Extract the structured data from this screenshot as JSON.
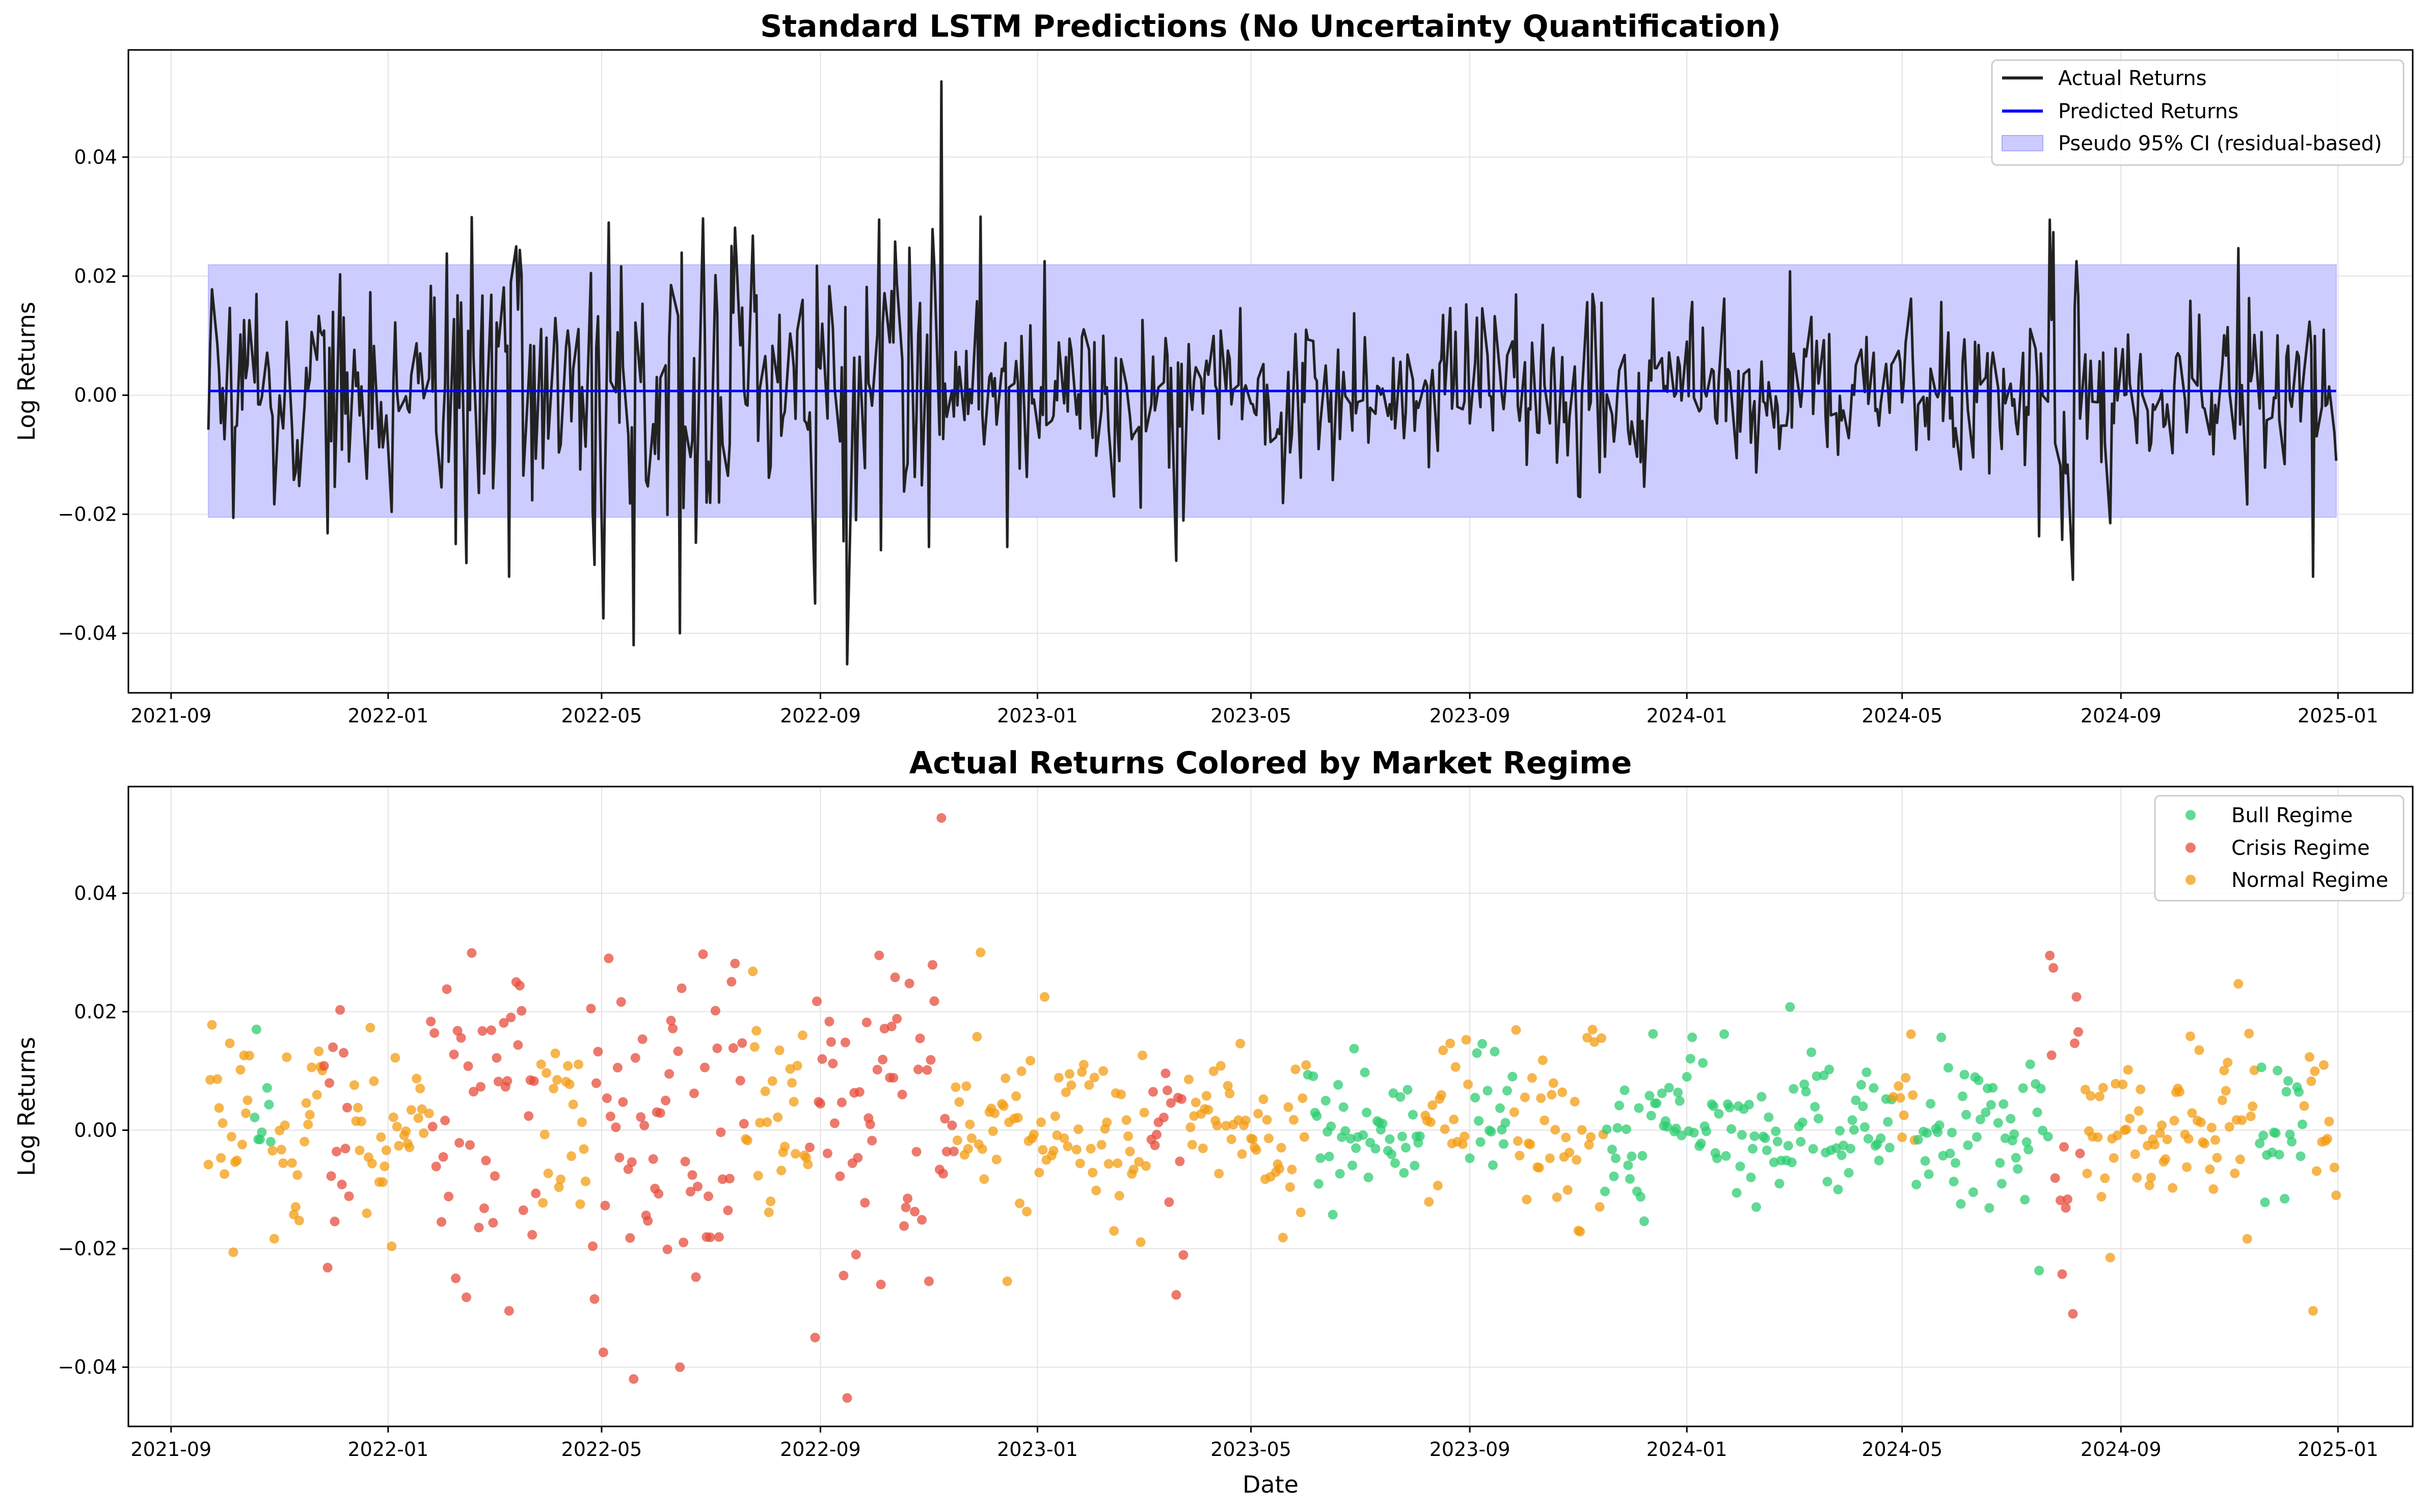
{
  "chart_data": [
    {
      "type": "line",
      "title": "Standard LSTM Predictions (No Uncertainty Quantification)",
      "xlabel": "",
      "ylabel": "Log Returns",
      "x_ticks": [
        "2021-09",
        "2022-01",
        "2022-05",
        "2022-09",
        "2023-01",
        "2023-05",
        "2023-09",
        "2024-01",
        "2024-05",
        "2024-09",
        "2025-01"
      ],
      "y_ticks": [
        "−0.04",
        "−0.02",
        "0.00",
        "0.02",
        "0.04"
      ],
      "ylim": [
        -0.05,
        0.058
      ],
      "xlim": [
        "2021-08-08",
        "2025-02-12"
      ],
      "grid": true,
      "legend_position": "top-right",
      "date_range": [
        "2021-09-22",
        "2024-12-31"
      ],
      "series": [
        {
          "name": "Actual Returns",
          "color": "#222222",
          "style": "line"
        },
        {
          "name": "Predicted Returns",
          "color": "#0000ff",
          "style": "line",
          "value": 0.0007
        },
        {
          "name": "Pseudo 95% CI (residual-based)",
          "color": "#aaaaff",
          "style": "band",
          "lower": -0.0205,
          "upper": 0.0219
        }
      ],
      "anchor_points": [
        [
          "2021-09-22",
          -0.0058
        ],
        [
          "2021-09-23",
          0.0085
        ],
        [
          "2021-09-30",
          0.0012
        ],
        [
          "2021-10-06",
          -0.0206
        ],
        [
          "2021-10-10",
          0.0102
        ],
        [
          "2021-10-19",
          0.017
        ],
        [
          "2021-11-28",
          -0.0232
        ],
        [
          "2021-12-01",
          0.014
        ],
        [
          "2021-12-05",
          0.0203
        ],
        [
          "2021-12-22",
          0.0173
        ],
        [
          "2022-01-03",
          -0.0196
        ],
        [
          "2022-02-03",
          0.0238
        ],
        [
          "2022-02-08",
          -0.025
        ],
        [
          "2022-03-10",
          -0.0305
        ],
        [
          "2022-03-14",
          0.025
        ],
        [
          "2022-04-27",
          -0.0285
        ],
        [
          "2022-05-02",
          -0.0375
        ],
        [
          "2022-05-05",
          0.029
        ],
        [
          "2022-05-19",
          -0.042
        ],
        [
          "2022-06-14",
          -0.04
        ],
        [
          "2022-06-27",
          0.0297
        ],
        [
          "2022-07-25",
          0.0268
        ],
        [
          "2022-08-29",
          -0.035
        ],
        [
          "2022-09-16",
          -0.0452
        ],
        [
          "2022-10-04",
          0.0295
        ],
        [
          "2022-10-13",
          0.0258
        ],
        [
          "2022-11-01",
          -0.0255
        ],
        [
          "2022-11-08",
          0.0527
        ],
        [
          "2022-11-30",
          0.03
        ],
        [
          "2022-12-15",
          -0.0255
        ],
        [
          "2023-01-05",
          0.0225
        ],
        [
          "2024-02-28",
          0.0208
        ],
        [
          "2024-07-17",
          -0.0237
        ],
        [
          "2024-08-05",
          -0.031
        ],
        [
          "2024-08-07",
          0.0225
        ],
        [
          "2024-08-26",
          -0.0215
        ],
        [
          "2024-11-06",
          0.0247
        ],
        [
          "2024-12-18",
          -0.0305
        ],
        [
          "2024-12-24",
          0.011
        ],
        [
          "2024-12-31",
          -0.011
        ]
      ]
    },
    {
      "type": "scatter",
      "title": "Actual Returns Colored by Market Regime",
      "xlabel": "Date",
      "ylabel": "Log Returns",
      "x_ticks": [
        "2021-09",
        "2022-01",
        "2022-05",
        "2022-09",
        "2023-01",
        "2023-05",
        "2023-09",
        "2024-01",
        "2024-05",
        "2024-09",
        "2025-01"
      ],
      "y_ticks": [
        "−0.04",
        "−0.02",
        "0.00",
        "0.02",
        "0.04"
      ],
      "ylim": [
        -0.05,
        0.058
      ],
      "xlim": [
        "2021-08-08",
        "2025-02-12"
      ],
      "grid": true,
      "legend_position": "top-right",
      "series": [
        {
          "name": "Bull Regime",
          "color": "#2ecc71"
        },
        {
          "name": "Crisis Regime",
          "color": "#e74c3c"
        },
        {
          "name": "Normal Regime",
          "color": "#f39c12"
        }
      ],
      "regime_periods": [
        {
          "regime": "Normal Regime",
          "start": "2021-09-22",
          "end": "2021-10-16"
        },
        {
          "regime": "Bull Regime",
          "start": "2021-10-17",
          "end": "2021-10-27"
        },
        {
          "regime": "Normal Regime",
          "start": "2021-10-28",
          "end": "2021-11-25"
        },
        {
          "regime": "Crisis Regime",
          "start": "2021-11-26",
          "end": "2021-12-10"
        },
        {
          "regime": "Normal Regime",
          "start": "2021-12-11",
          "end": "2022-01-24"
        },
        {
          "regime": "Crisis Regime",
          "start": "2022-01-25",
          "end": "2022-03-25"
        },
        {
          "regime": "Normal Regime",
          "start": "2022-03-26",
          "end": "2022-04-24"
        },
        {
          "regime": "Crisis Regime",
          "start": "2022-04-25",
          "end": "2022-07-20"
        },
        {
          "regime": "Normal Regime",
          "start": "2022-07-21",
          "end": "2022-08-25"
        },
        {
          "regime": "Crisis Regime",
          "start": "2022-08-26",
          "end": "2022-11-15"
        },
        {
          "regime": "Normal Regime",
          "start": "2022-11-16",
          "end": "2023-03-05"
        },
        {
          "regime": "Crisis Regime",
          "start": "2023-03-06",
          "end": "2023-03-25"
        },
        {
          "regime": "Normal Regime",
          "start": "2023-03-26",
          "end": "2023-06-01"
        },
        {
          "regime": "Bull Regime",
          "start": "2023-06-02",
          "end": "2023-08-05"
        },
        {
          "regime": "Normal Regime",
          "start": "2023-08-06",
          "end": "2023-08-31"
        },
        {
          "regime": "Bull Regime",
          "start": "2023-09-01",
          "end": "2023-09-25"
        },
        {
          "regime": "Normal Regime",
          "start": "2023-09-26",
          "end": "2023-11-15"
        },
        {
          "regime": "Bull Regime",
          "start": "2023-11-16",
          "end": "2024-04-25"
        },
        {
          "regime": "Normal Regime",
          "start": "2024-04-26",
          "end": "2024-05-08"
        },
        {
          "regime": "Bull Regime",
          "start": "2024-05-09",
          "end": "2024-07-22"
        },
        {
          "regime": "Crisis Regime",
          "start": "2024-07-23",
          "end": "2024-08-10"
        },
        {
          "regime": "Normal Regime",
          "start": "2024-08-11",
          "end": "2024-11-15"
        },
        {
          "regime": "Bull Regime",
          "start": "2024-11-16",
          "end": "2024-12-12"
        },
        {
          "regime": "Normal Regime",
          "start": "2024-12-13",
          "end": "2024-12-31"
        }
      ]
    }
  ]
}
